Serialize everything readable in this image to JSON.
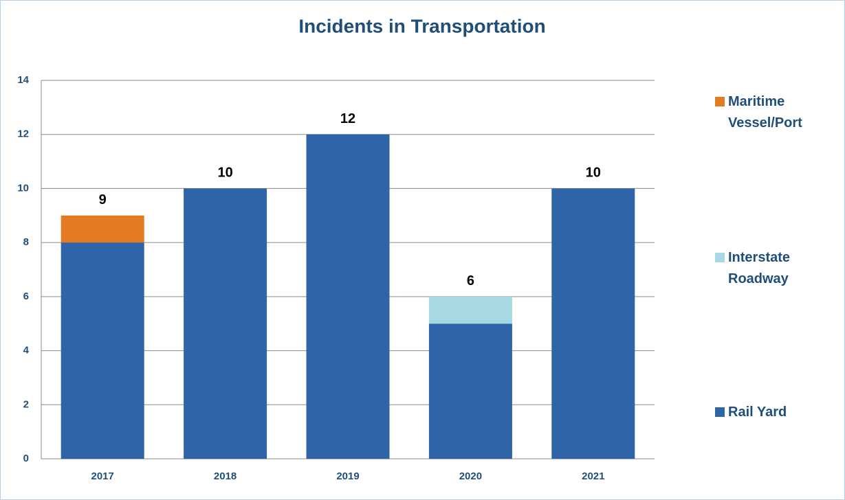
{
  "chart_data": {
    "type": "stacked_bar",
    "title": "Incidents in Transportation",
    "categories": [
      "2017",
      "2018",
      "2019",
      "2020",
      "2021"
    ],
    "series": [
      {
        "name": "Rail Yard",
        "color": "#2f64a8",
        "values": [
          8,
          10,
          12,
          5,
          10
        ]
      },
      {
        "name": "Interstate Roadway",
        "color": "#a6d9e2",
        "values": [
          0,
          0,
          0,
          1,
          0
        ]
      },
      {
        "name": "Maritime Vessel/Port",
        "color": "#e37b22",
        "values": [
          1,
          0,
          0,
          0,
          0
        ]
      }
    ],
    "totals": [
      9,
      10,
      12,
      6,
      10
    ],
    "ylim": [
      0,
      14
    ],
    "yticks": [
      0,
      2,
      4,
      6,
      8,
      10,
      12,
      14
    ],
    "grid": true
  }
}
